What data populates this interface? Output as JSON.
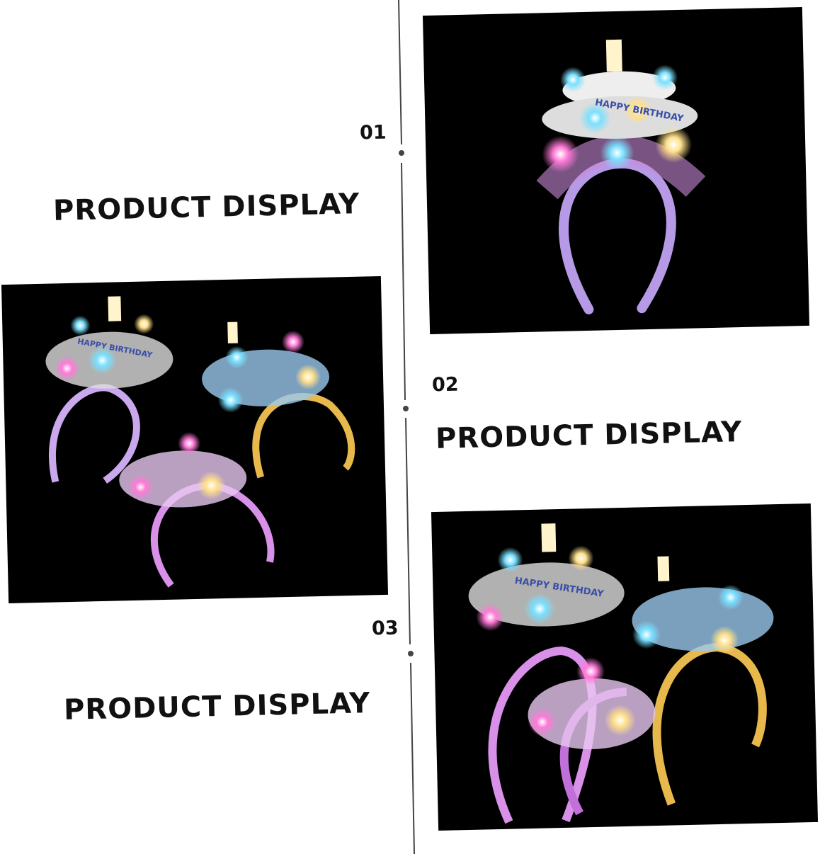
{
  "sections": [
    {
      "number": "01",
      "label": "PRODUCT DISPLAY"
    },
    {
      "number": "02",
      "label": "PRODUCT DISPLAY"
    },
    {
      "number": "03",
      "label": "PRODUCT DISPLAY"
    }
  ],
  "photos": [
    {
      "subject": "single light-up birthday cake headband",
      "printed_text": "HAPPY BIRTHDAY"
    },
    {
      "subject": "three light-up birthday cake headbands",
      "printed_text": "HAPPY BIRTHDAY"
    },
    {
      "subject": "three light-up birthday cake headbands close-up",
      "printed_text": "HAPPY BIRTHDAY"
    }
  ],
  "colors": {
    "background": "#ffffff",
    "photo_background": "#000000",
    "text": "#111111",
    "divider": "#444444"
  }
}
